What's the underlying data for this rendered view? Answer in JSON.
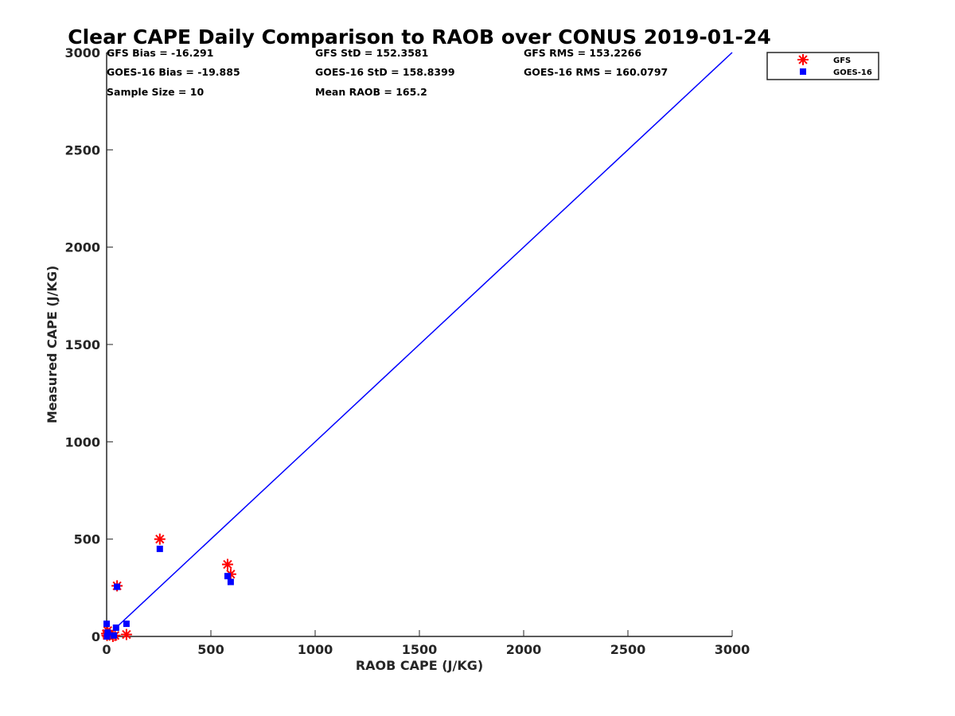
{
  "chart_data": {
    "type": "scatter",
    "title": "Clear CAPE Daily Comparison to RAOB over CONUS 2019-01-24",
    "xlabel": "RAOB CAPE (J/KG)",
    "ylabel": "Measured CAPE (J/KG)",
    "xlim": [
      0,
      3000
    ],
    "ylim": [
      0,
      3000
    ],
    "xticks": [
      "0",
      "500",
      "1000",
      "1500",
      "2000",
      "2500",
      "3000"
    ],
    "yticks": [
      "0",
      "500",
      "1000",
      "1500",
      "2000",
      "2500",
      "3000"
    ],
    "grid": false,
    "legend_position": "top-right outside",
    "reference_line": {
      "name": "1:1",
      "x": [
        0,
        3000
      ],
      "y": [
        0,
        3000
      ],
      "color": "#0000ff"
    },
    "series": [
      {
        "name": "GFS",
        "marker": "asterisk",
        "color": "#ff0000",
        "x": [
          0,
          5,
          30,
          40,
          50,
          95,
          255,
          580,
          595,
          2
        ],
        "y": [
          15,
          30,
          0,
          5,
          260,
          10,
          500,
          370,
          320,
          5
        ]
      },
      {
        "name": "GOES-16",
        "marker": "square",
        "color": "#0000ff",
        "x": [
          0,
          5,
          35,
          45,
          50,
          95,
          255,
          580,
          595,
          2
        ],
        "y": [
          65,
          20,
          5,
          45,
          255,
          65,
          450,
          310,
          280,
          0
        ]
      }
    ]
  },
  "stats": {
    "gfs_bias": "GFS Bias = -16.291",
    "gfs_std": "GFS StD = 152.3581",
    "gfs_rms": "GFS RMS = 153.2266",
    "goes_bias": "GOES-16 Bias = -19.885",
    "goes_std": "GOES-16 StD = 158.8399",
    "goes_rms": "GOES-16 RMS = 160.0797",
    "sample_size": "Sample Size = 10",
    "mean_raob": "Mean RAOB = 165.2"
  }
}
